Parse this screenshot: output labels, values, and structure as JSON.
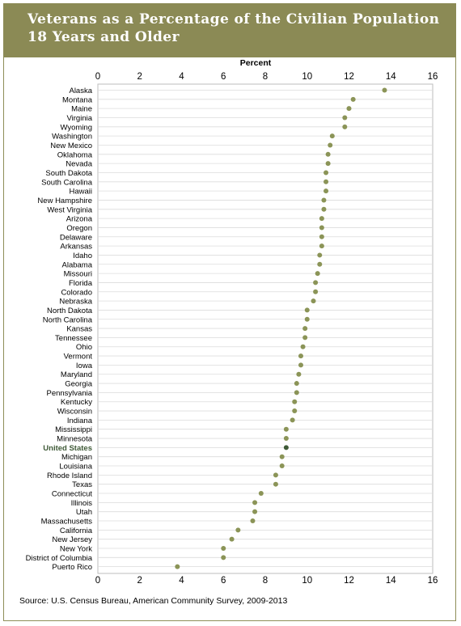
{
  "title": "Veterans as a Percentage of the Civilian Population 18 Years and Older",
  "source": "Source: U.S. Census Bureau, American Community Survey, 2009-2013",
  "colors": {
    "banner": "#8b8a55",
    "dot": "#8b9457",
    "highlight_dot": "#3f5a37",
    "highlight_label": "#3f5a37",
    "grid": "#dcdcdc"
  },
  "chart_data": {
    "type": "scatter",
    "xlabel": "Percent",
    "xlim": [
      0,
      16
    ],
    "xticks": [
      "0",
      "2",
      "4",
      "6",
      "8",
      "10",
      "12",
      "14",
      "16"
    ],
    "x_axis_position": "top-and-bottom",
    "grid": true,
    "highlight": "United States",
    "categories": [
      "Alaska",
      "Montana",
      "Maine",
      "Virginia",
      "Wyoming",
      "Washington",
      "New Mexico",
      "Oklahoma",
      "Nevada",
      "South Dakota",
      "South Carolina",
      "Hawaii",
      "New Hampshire",
      "West Virginia",
      "Arizona",
      "Oregon",
      "Delaware",
      "Arkansas",
      "Idaho",
      "Alabama",
      "Missouri",
      "Florida",
      "Colorado",
      "Nebraska",
      "North Dakota",
      "North Carolina",
      "Kansas",
      "Tennessee",
      "Ohio",
      "Vermont",
      "Iowa",
      "Maryland",
      "Georgia",
      "Pennsylvania",
      "Kentucky",
      "Wisconsin",
      "Indiana",
      "Mississippi",
      "Minnesota",
      "United States",
      "Michigan",
      "Louisiana",
      "Rhode Island",
      "Texas",
      "Connecticut",
      "Illinois",
      "Utah",
      "Massachusetts",
      "California",
      "New Jersey",
      "New York",
      "District of Columbia",
      "Puerto Rico"
    ],
    "values": [
      13.7,
      12.2,
      12.0,
      11.8,
      11.8,
      11.2,
      11.1,
      11.0,
      11.0,
      10.9,
      10.9,
      10.9,
      10.8,
      10.8,
      10.7,
      10.7,
      10.7,
      10.7,
      10.6,
      10.6,
      10.5,
      10.4,
      10.4,
      10.3,
      10.0,
      10.0,
      9.9,
      9.9,
      9.8,
      9.7,
      9.7,
      9.6,
      9.5,
      9.5,
      9.4,
      9.4,
      9.3,
      9.0,
      9.0,
      9.0,
      8.8,
      8.8,
      8.5,
      8.5,
      7.8,
      7.5,
      7.5,
      7.4,
      6.7,
      6.4,
      6.0,
      6.0,
      3.8
    ]
  }
}
